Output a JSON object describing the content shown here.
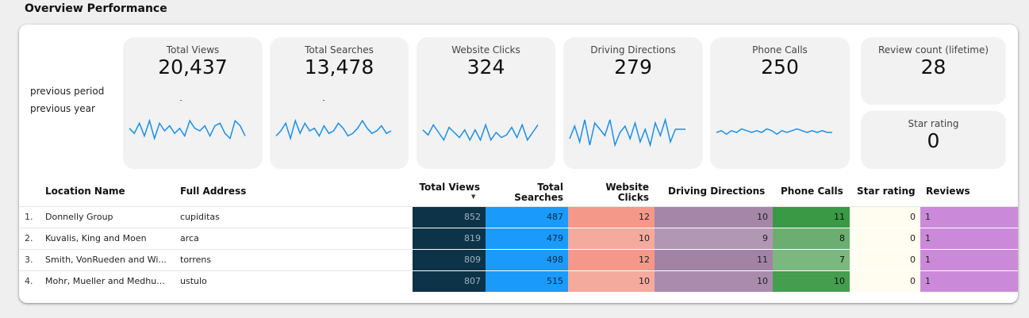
{
  "section_title": "Overview Performance",
  "legend": {
    "previous_period": "previous period",
    "previous_year": "previous year"
  },
  "kpis": [
    {
      "label": "Total Views",
      "value": "20,437"
    },
    {
      "label": "Total Searches",
      "value": "13,478"
    },
    {
      "label": "Website Clicks",
      "value": "324"
    },
    {
      "label": "Driving Directions",
      "value": "279"
    },
    {
      "label": "Phone Calls",
      "value": "250"
    },
    {
      "label": "Review count (lifetime)",
      "value": "28"
    },
    {
      "label": "Star rating",
      "value": "0"
    }
  ],
  "sparklines": [
    [
      6,
      4,
      8,
      3,
      9,
      2,
      8,
      5,
      7,
      4,
      6,
      3,
      9,
      6,
      5,
      7,
      3,
      7,
      8,
      4,
      2,
      9,
      7,
      3
    ],
    [
      3,
      5,
      8,
      2,
      9,
      4,
      8,
      5,
      6,
      3,
      7,
      4,
      5,
      8,
      6,
      3,
      4,
      6,
      9,
      6,
      4,
      5,
      7,
      4,
      5
    ],
    [
      6,
      4,
      8,
      5,
      2,
      7,
      5,
      3,
      6,
      2,
      6,
      2,
      8,
      2,
      5,
      3,
      4,
      7,
      3,
      8,
      2,
      5,
      8
    ],
    [
      3,
      7,
      2,
      9,
      1,
      8,
      6,
      4,
      9,
      1,
      5,
      7,
      3,
      8,
      2,
      6,
      1,
      8,
      4,
      9,
      2,
      6,
      6,
      6
    ],
    [
      5,
      6,
      4,
      6,
      5,
      7,
      6,
      5,
      6,
      5,
      7,
      6,
      4,
      6,
      5,
      6,
      7,
      6,
      5,
      6,
      5,
      6,
      5,
      5
    ]
  ],
  "table": {
    "headers": {
      "location": "Location Name",
      "address": "Full Address",
      "views": "Total Views",
      "searches_1": "Total",
      "searches_2": "Searches",
      "clicks_1": "Website",
      "clicks_2": "Clicks",
      "directions": "Driving Directions",
      "calls": "Phone Calls",
      "stars": "Star rating",
      "reviews": "Reviews"
    },
    "sort_indicator": "▼",
    "rows": [
      {
        "num": "1.",
        "location": "Donnelly Group",
        "address": "cupiditas",
        "views": "852",
        "searches": "487",
        "clicks": "12",
        "directions": "10",
        "calls": "11",
        "stars": "0",
        "reviews": "1"
      },
      {
        "num": "2.",
        "location": "Kuvalis, King and Moen",
        "address": "arca",
        "views": "819",
        "searches": "479",
        "clicks": "10",
        "directions": "9",
        "calls": "8",
        "stars": "0",
        "reviews": "1"
      },
      {
        "num": "3.",
        "location": "Smith, VonRueden and Wi...",
        "address": "torrens",
        "views": "809",
        "searches": "498",
        "clicks": "12",
        "directions": "11",
        "calls": "7",
        "stars": "0",
        "reviews": "1"
      },
      {
        "num": "4.",
        "location": "Mohr, Mueller and Medhu...",
        "address": "ustulo",
        "views": "807",
        "searches": "515",
        "clicks": "10",
        "directions": "10",
        "calls": "10",
        "stars": "0",
        "reviews": "1"
      }
    ]
  },
  "colors": {
    "views": "#0d3348",
    "searches": "#1a9bfb",
    "clicks": [
      "#f4998a",
      "#f4aa9c",
      "#f4998a",
      "#f4aa9c"
    ],
    "directions": [
      "#a585a8",
      "#b297b4",
      "#a283a6",
      "#aa8bad"
    ],
    "calls": [
      "#3a9944",
      "#6cae72",
      "#7ab880",
      "#459e4e"
    ],
    "stars": "#fffdf0",
    "reviews": "#cb8ad9",
    "sparkline": "#1a8fe8"
  }
}
